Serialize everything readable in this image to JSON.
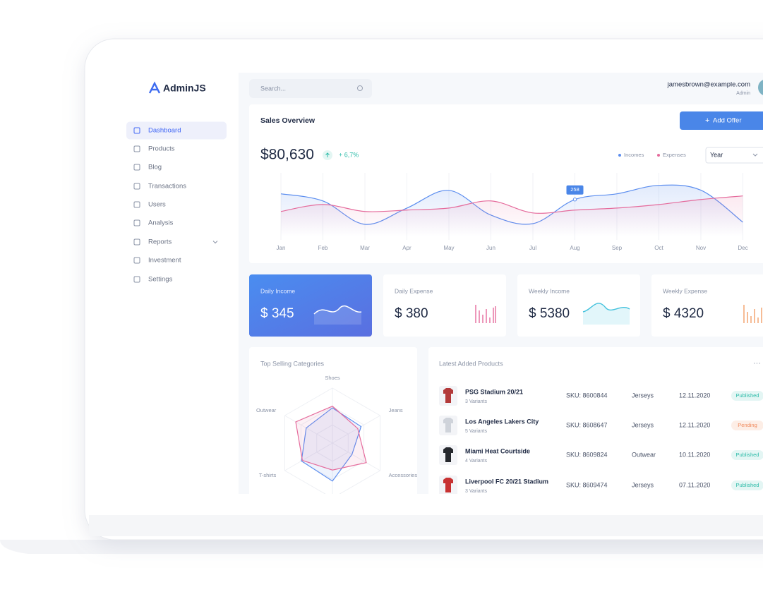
{
  "brand": "AdminJS",
  "search_placeholder": "Search...",
  "user": {
    "email": "jamesbrown@example.com",
    "role": "Admin"
  },
  "nav": [
    "Dashboard",
    "Products",
    "Blog",
    "Transactions",
    "Users",
    "Analysis",
    "Reports",
    "Investment",
    "Settings"
  ],
  "sales_overview": {
    "title": "Sales Overview",
    "button": "Add Offer",
    "total": "$80,630",
    "change": "+ 6,7%",
    "period": "Year",
    "chart": {
      "type": "line",
      "categories": [
        "Jan",
        "Feb",
        "Mar",
        "Apr",
        "May",
        "Jun",
        "Jul",
        "Aug",
        "Sep",
        "Oct",
        "Nov",
        "Dec"
      ],
      "series": [
        {
          "name": "Incomes",
          "color": "#5b8def",
          "values": [
            298,
            248,
            84,
            198,
            322,
            149,
            89,
            258,
            298,
            357,
            323,
            99
          ]
        },
        {
          "name": "Expenses",
          "color": "#e56b9c",
          "values": [
            174,
            223,
            174,
            184,
            198,
            248,
            164,
            184,
            198,
            223,
            258,
            283
          ]
        }
      ],
      "ylim": [
        0,
        400
      ]
    }
  },
  "stats": [
    {
      "label": "Daily Income",
      "value": "$ 345"
    },
    {
      "label": "Daily Expense",
      "value": "$ 380"
    },
    {
      "label": "Weekly Income",
      "value": "$ 5380"
    },
    {
      "label": "Weekly Expense",
      "value": "$ 4320"
    }
  ],
  "top_selling": {
    "title": "Top Selling Categories",
    "chart": {
      "type": "radar",
      "categories": [
        "Shoes",
        "Jeans",
        "Accessories",
        null,
        "T-shirts",
        "Outwear"
      ],
      "series": [
        {
          "color": "#5b8def",
          "values": [
            64,
            60,
            41,
            69,
            65,
            55
          ]
        },
        {
          "color": "#e56b9c",
          "values": [
            67,
            53,
            71,
            49,
            63,
            77
          ]
        }
      ],
      "rlim": [
        0,
        100
      ]
    }
  },
  "latest_products": {
    "title": "Latest Added Products",
    "menu": "···",
    "rows": [
      {
        "name": "PSG Stadium 20/21",
        "variants": "3 Variants",
        "sku": "SKU: 8600844",
        "category": "Jerseys",
        "date": "12.11.2020",
        "status": "Published"
      },
      {
        "name": "Los Angeles Lakers City",
        "variants": "5 Variants",
        "sku": "SKU: 8608647",
        "category": "Jerseys",
        "date": "12.11.2020",
        "status": "Pending"
      },
      {
        "name": "Miami Heat Courtside",
        "variants": "4 Variants",
        "sku": "SKU: 8609824",
        "category": "Outwear",
        "date": "10.11.2020",
        "status": "Published"
      },
      {
        "name": "Liverpool FC 20/21 Stadium",
        "variants": "3 Variants",
        "sku": "SKU: 8609474",
        "category": "Jerseys",
        "date": "07.11.2020",
        "status": "Published"
      }
    ]
  }
}
